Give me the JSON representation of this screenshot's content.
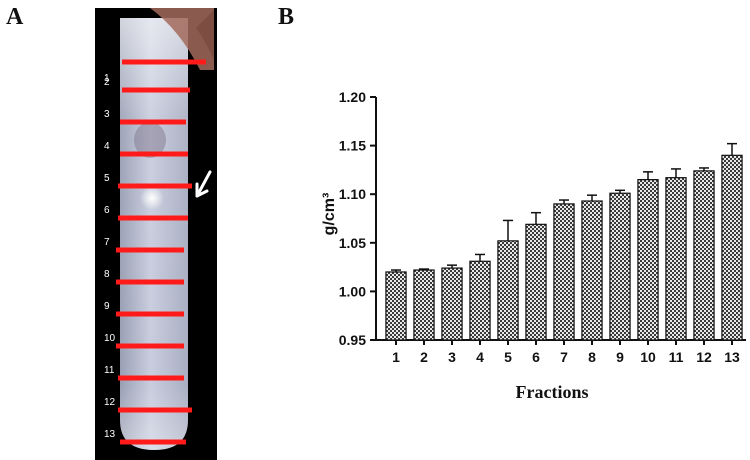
{
  "panels": {
    "a_label": "A",
    "b_label": "B"
  },
  "photo": {
    "fraction_labels": [
      "1",
      "2",
      "3",
      "4",
      "5",
      "6",
      "7",
      "8",
      "9",
      "10",
      "11",
      "12",
      "13"
    ],
    "marker_color": "#ff1a1a",
    "arrow_color": "#ffffff",
    "background_color": "#000000"
  },
  "chart_data": {
    "type": "bar",
    "categories": [
      "1",
      "2",
      "3",
      "4",
      "5",
      "6",
      "7",
      "8",
      "9",
      "10",
      "11",
      "12",
      "13"
    ],
    "values": [
      1.02,
      1.022,
      1.024,
      1.031,
      1.052,
      1.069,
      1.09,
      1.093,
      1.101,
      1.115,
      1.117,
      1.124,
      1.14
    ],
    "errors": [
      0.002,
      0.001,
      0.003,
      0.007,
      0.021,
      0.012,
      0.004,
      0.006,
      0.003,
      0.008,
      0.009,
      0.003,
      0.012
    ],
    "xlabel": "Fractions",
    "ylabel": "g/cm³",
    "ylim": [
      0.95,
      1.2
    ],
    "yticks": [
      "0.95",
      "1.00",
      "1.05",
      "1.10",
      "1.15",
      "1.20"
    ],
    "bar_fill": "checkered",
    "grid": false
  }
}
